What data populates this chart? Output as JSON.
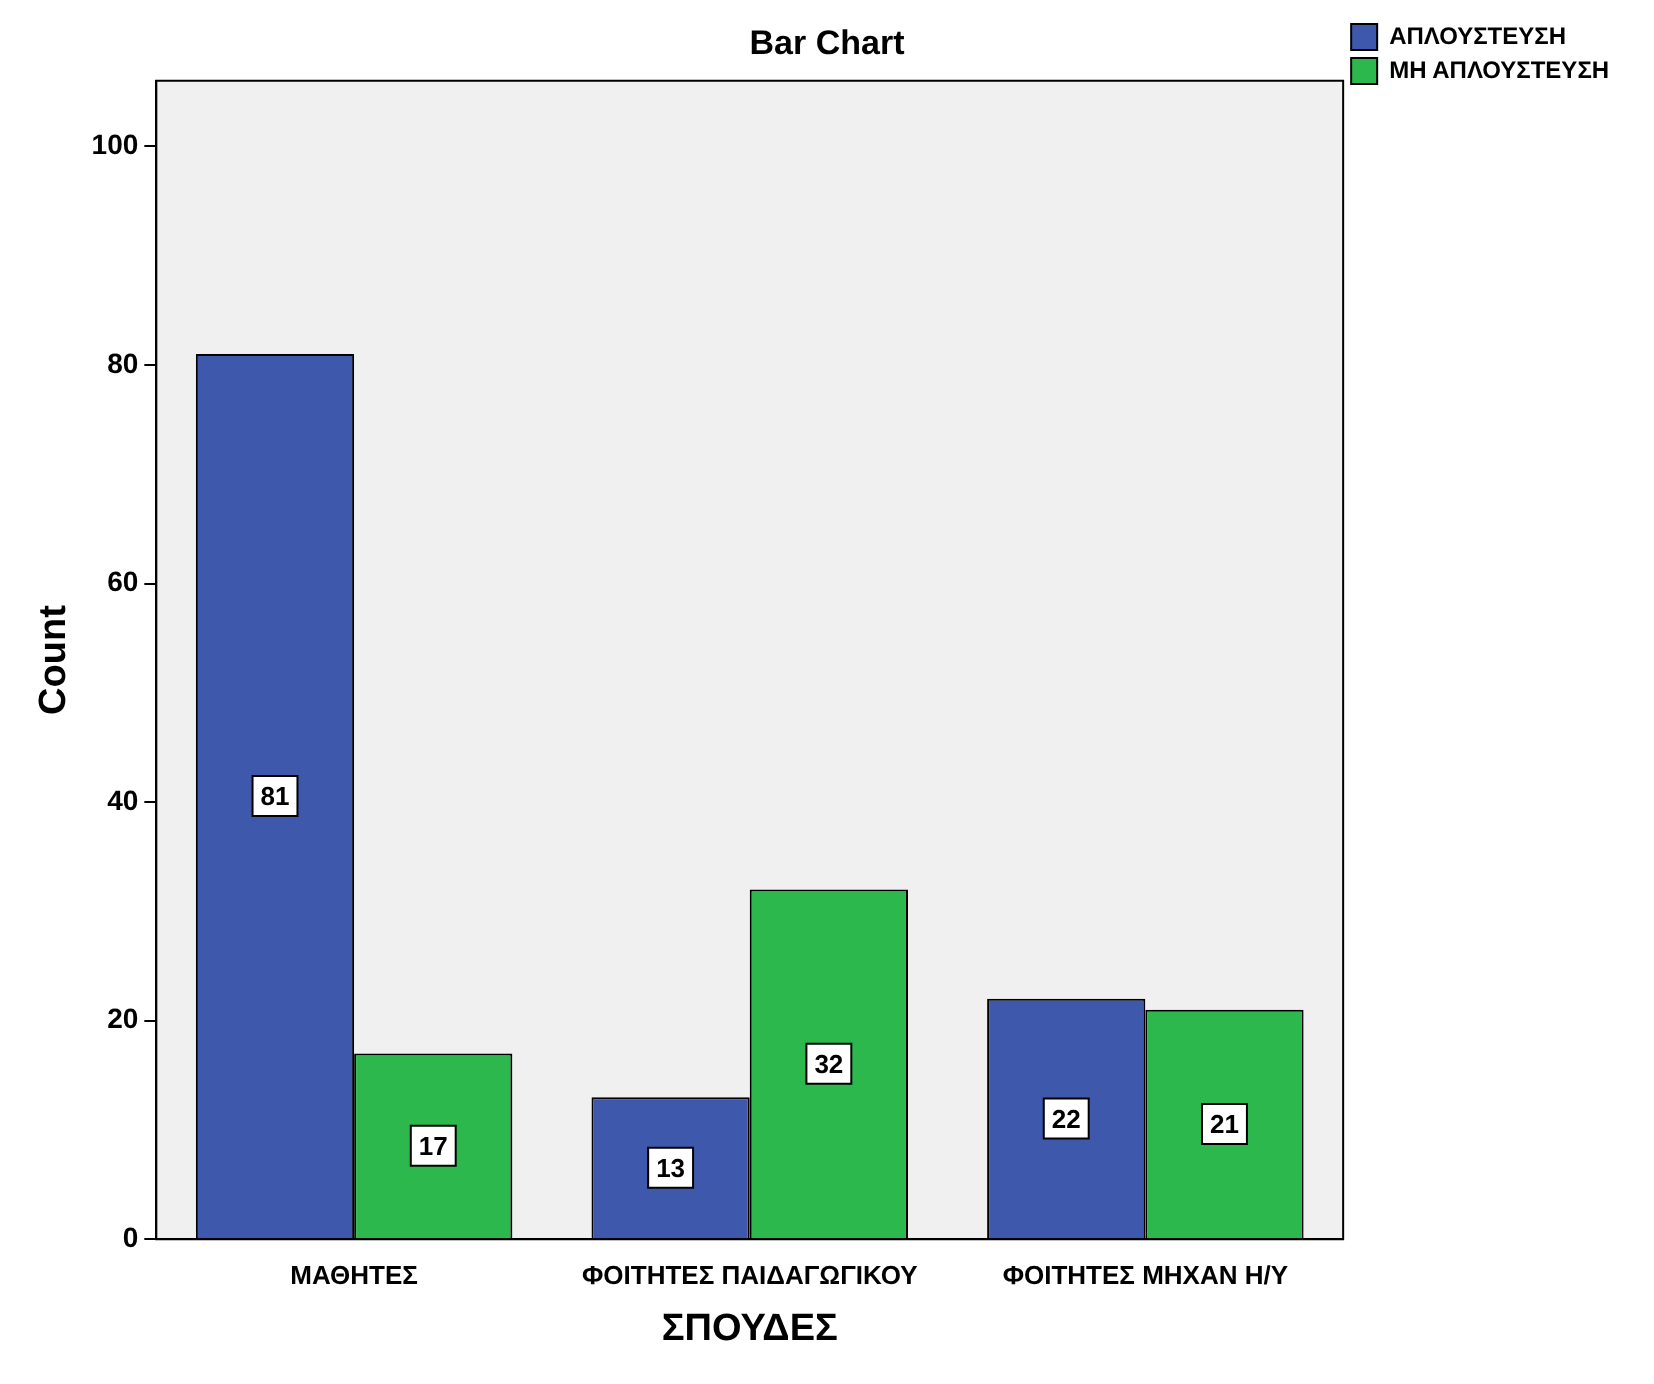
{
  "chart_data": {
    "type": "bar",
    "title": "Bar Chart",
    "xlabel": "ΣΠΟΥΔΕΣ",
    "ylabel": "Count",
    "categories": [
      "ΜΑΘΗΤΕΣ",
      "ΦΟΙΤΗΤΕΣ ΠΑΙΔΑΓΩΓΙΚΟΥ",
      "ΦΟΙΤΗΤΕΣ ΜΗΧΑΝ Η/Υ"
    ],
    "series": [
      {
        "name": "ΑΠΛΟΥΣΤΕΥΣΗ",
        "color": "#3e58ac",
        "values": [
          81,
          13,
          22
        ]
      },
      {
        "name": "ΜΗ ΑΠΛΟΥΣΤΕΥΣΗ",
        "color": "#2db84d",
        "values": [
          17,
          32,
          21
        ]
      }
    ],
    "ylim": [
      0,
      106
    ],
    "yticks": [
      0,
      20,
      40,
      60,
      80,
      100
    ],
    "grid": false,
    "legend": "top right",
    "data_labels": true
  }
}
